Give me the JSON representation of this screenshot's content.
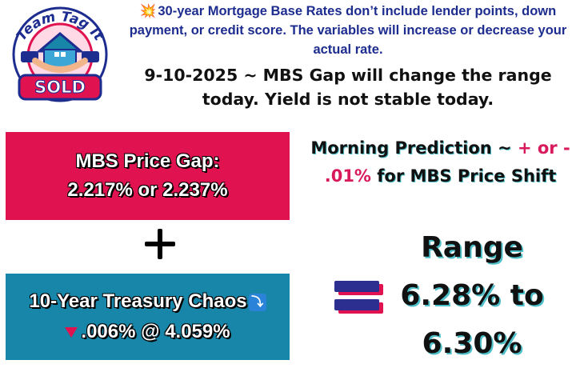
{
  "logo": {
    "brand_text": "Team Tag It",
    "badge_text": "SOLD",
    "icon": "house-handshake-icon",
    "colors": {
      "ring": "#1d2c8f",
      "roof": "#1886a8",
      "badge": "#e0124f"
    }
  },
  "disclaimer": {
    "icon": "collision-icon",
    "text": "30-year Mortgage Base Rates don’t include lender points, down payment, or credit score. The variables will increase or decrease your actual rate."
  },
  "headline": "9-10-2025 ~ MBS Gap will change the range today. Yield is not stable today.",
  "mbs_box": {
    "line1": "MBS Price Gap:",
    "line2": "2.217% or 2.237%",
    "color": "#e0124f"
  },
  "treasury_box": {
    "line1": "10-Year Treasury Chaos",
    "line1_icon": "right-arrow-curving-down-icon",
    "line2_icon": "red-triangle-down-icon",
    "line2": ".006% @ 4.059%",
    "color": "#1886a8"
  },
  "prediction": {
    "part1": "Morning Prediction ~ ",
    "highlight": "+ or - .01%",
    "part2": " for MBS Price Shift"
  },
  "range": {
    "label": "Range",
    "line1": "6.28% to",
    "line2": "6.30%"
  }
}
